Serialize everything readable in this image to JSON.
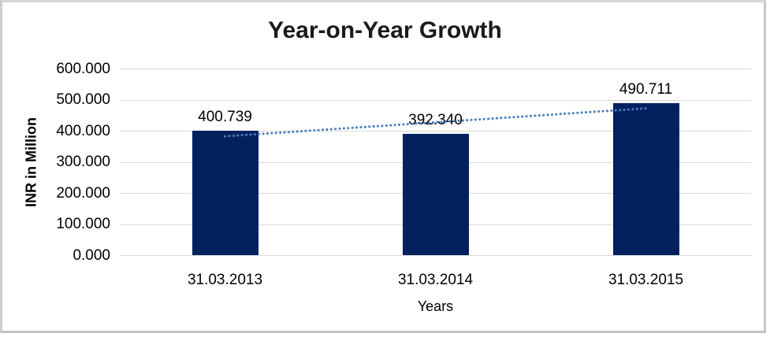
{
  "image": {
    "background_color": "#ffffff",
    "border_color": "#c9c9c9"
  },
  "chart_data": {
    "type": "bar",
    "title": "Year-on-Year Growth",
    "xlabel": "Years",
    "ylabel": "INR in Million",
    "categories": [
      "31.03.2013",
      "31.03.2014",
      "31.03.2015"
    ],
    "values": [
      400.739,
      392.34,
      490.711
    ],
    "value_labels": [
      "400.739",
      "392.340",
      "490.711"
    ],
    "ylim": [
      0,
      600
    ],
    "ytick_step": 100,
    "ytick_labels": [
      "0.000",
      "100.000",
      "200.000",
      "300.000",
      "400.000",
      "500.000",
      "600.000"
    ],
    "grid": true,
    "legend": "none",
    "bar_color": "#03215E",
    "gridline_color": "#d9d9d9",
    "trendline": {
      "type": "linear",
      "style": "dotted",
      "color": "#4A7EBB",
      "start_value": 383.3,
      "end_value": 473.2
    }
  }
}
